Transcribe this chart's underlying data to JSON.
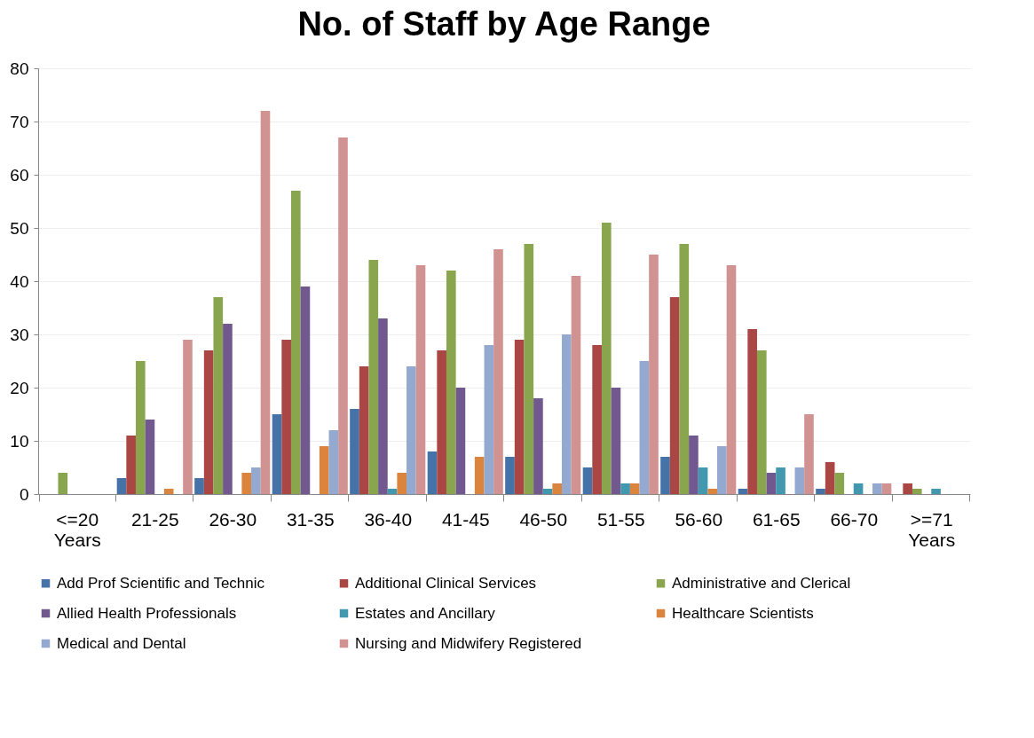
{
  "chart_data": {
    "type": "bar",
    "title": "No. of Staff by Age Range",
    "categories": [
      "<=20 Years",
      "21-25",
      "26-30",
      "31-35",
      "36-40",
      "41-45",
      "46-50",
      "51-55",
      "56-60",
      "61-65",
      "66-70",
      ">=71 Years"
    ],
    "series": [
      {
        "name": "Add Prof Scientific and Technic",
        "color": "#4572a7",
        "values": [
          0,
          3,
          3,
          15,
          16,
          8,
          7,
          5,
          7,
          1,
          1,
          0
        ]
      },
      {
        "name": "Additional Clinical Services",
        "color": "#aa4643",
        "values": [
          0,
          11,
          27,
          29,
          24,
          27,
          29,
          28,
          37,
          31,
          6,
          2
        ]
      },
      {
        "name": "Administrative and Clerical",
        "color": "#89a54e",
        "values": [
          4,
          25,
          37,
          57,
          44,
          42,
          47,
          51,
          47,
          27,
          4,
          1
        ]
      },
      {
        "name": "Allied Health Professionals",
        "color": "#71588f",
        "values": [
          0,
          14,
          32,
          39,
          33,
          20,
          18,
          20,
          11,
          4,
          0,
          0
        ]
      },
      {
        "name": "Estates and Ancillary",
        "color": "#4198af",
        "values": [
          0,
          0,
          0,
          0,
          1,
          0,
          1,
          2,
          5,
          5,
          2,
          1
        ]
      },
      {
        "name": "Healthcare Scientists",
        "color": "#db843d",
        "values": [
          0,
          1,
          4,
          9,
          4,
          7,
          2,
          2,
          1,
          0,
          0,
          0
        ]
      },
      {
        "name": "Medical and Dental",
        "color": "#93a9cf",
        "values": [
          0,
          0,
          5,
          12,
          24,
          28,
          30,
          25,
          9,
          5,
          2,
          0
        ]
      },
      {
        "name": "Nursing and Midwifery Registered",
        "color": "#d19392",
        "values": [
          0,
          29,
          72,
          67,
          43,
          46,
          41,
          45,
          43,
          15,
          2,
          0
        ]
      }
    ],
    "ylim": [
      0,
      80
    ],
    "yticks": [
      0,
      10,
      20,
      30,
      40,
      50,
      60,
      70,
      80
    ],
    "grid": "y",
    "legend": "bottom"
  }
}
